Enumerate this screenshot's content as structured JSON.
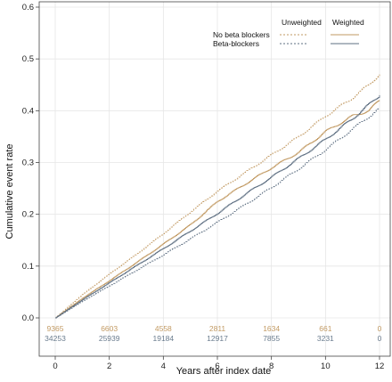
{
  "colors": {
    "weighted": "#b08a5a",
    "unweighted": "#6a7c8e",
    "no_bb": "#c29a63",
    "bb": "#5e6f82",
    "grid": "#e6e6e6",
    "axis": "#444444"
  },
  "chart_data": {
    "type": "line",
    "title": "",
    "xlabel": "Years after index date",
    "ylabel": "Cumulative event rate",
    "xlim": [
      0,
      12
    ],
    "ylim": [
      0,
      0.6
    ],
    "xticks": [
      "0",
      "2",
      "4",
      "6",
      "8",
      "10",
      "12"
    ],
    "yticks": [
      "0.0",
      "0.1",
      "0.2",
      "0.3",
      "0.4",
      "0.5",
      "0.6"
    ],
    "grid": true,
    "legend": {
      "position": "top-right",
      "col_unweighted": "Unweighted",
      "col_weighted": "Weighted",
      "row_no_bb": "No beta blockers",
      "row_bb": "Beta-blockers"
    },
    "series": [
      {
        "name": "No beta blockers",
        "weighting": "Unweighted",
        "style": "dotted",
        "color_key": "no_bb",
        "x": [
          0,
          1,
          2,
          3,
          4,
          5,
          6,
          7,
          8,
          9,
          10,
          11,
          11.6,
          12
        ],
        "y": [
          0,
          0.045,
          0.085,
          0.123,
          0.163,
          0.205,
          0.245,
          0.28,
          0.315,
          0.35,
          0.39,
          0.425,
          0.45,
          0.47
        ]
      },
      {
        "name": "Beta-blockers",
        "weighting": "Unweighted",
        "style": "dotted",
        "color_key": "bb",
        "x": [
          0,
          1,
          2,
          3,
          4,
          5,
          6,
          7,
          8,
          9,
          10,
          11,
          12
        ],
        "y": [
          0,
          0.032,
          0.062,
          0.092,
          0.122,
          0.153,
          0.185,
          0.218,
          0.252,
          0.288,
          0.325,
          0.365,
          0.405
        ]
      },
      {
        "name": "No beta blockers",
        "weighting": "Weighted",
        "style": "solid",
        "color_key": "no_bb",
        "x": [
          0,
          1,
          2,
          3,
          4,
          5,
          6,
          7,
          8,
          9,
          10,
          11,
          11.6,
          12
        ],
        "y": [
          0,
          0.038,
          0.072,
          0.107,
          0.143,
          0.18,
          0.225,
          0.258,
          0.29,
          0.32,
          0.36,
          0.39,
          0.4,
          0.42
        ]
      },
      {
        "name": "Beta-blockers",
        "weighting": "Weighted",
        "style": "solid",
        "color_key": "bb",
        "x": [
          0,
          1,
          2,
          3,
          4,
          5,
          6,
          7,
          8,
          9,
          10,
          11,
          12
        ],
        "y": [
          0,
          0.035,
          0.068,
          0.101,
          0.134,
          0.168,
          0.202,
          0.238,
          0.272,
          0.308,
          0.345,
          0.385,
          0.43
        ]
      }
    ],
    "numbers_at_risk": {
      "x": [
        0,
        2,
        4,
        6,
        8,
        10,
        12
      ],
      "no_beta_blockers": [
        "9365",
        "6603",
        "4558",
        "2811",
        "1634",
        "661",
        "0"
      ],
      "beta_blockers": [
        "34253",
        "25939",
        "19184",
        "12917",
        "7855",
        "3231",
        "0"
      ]
    }
  }
}
